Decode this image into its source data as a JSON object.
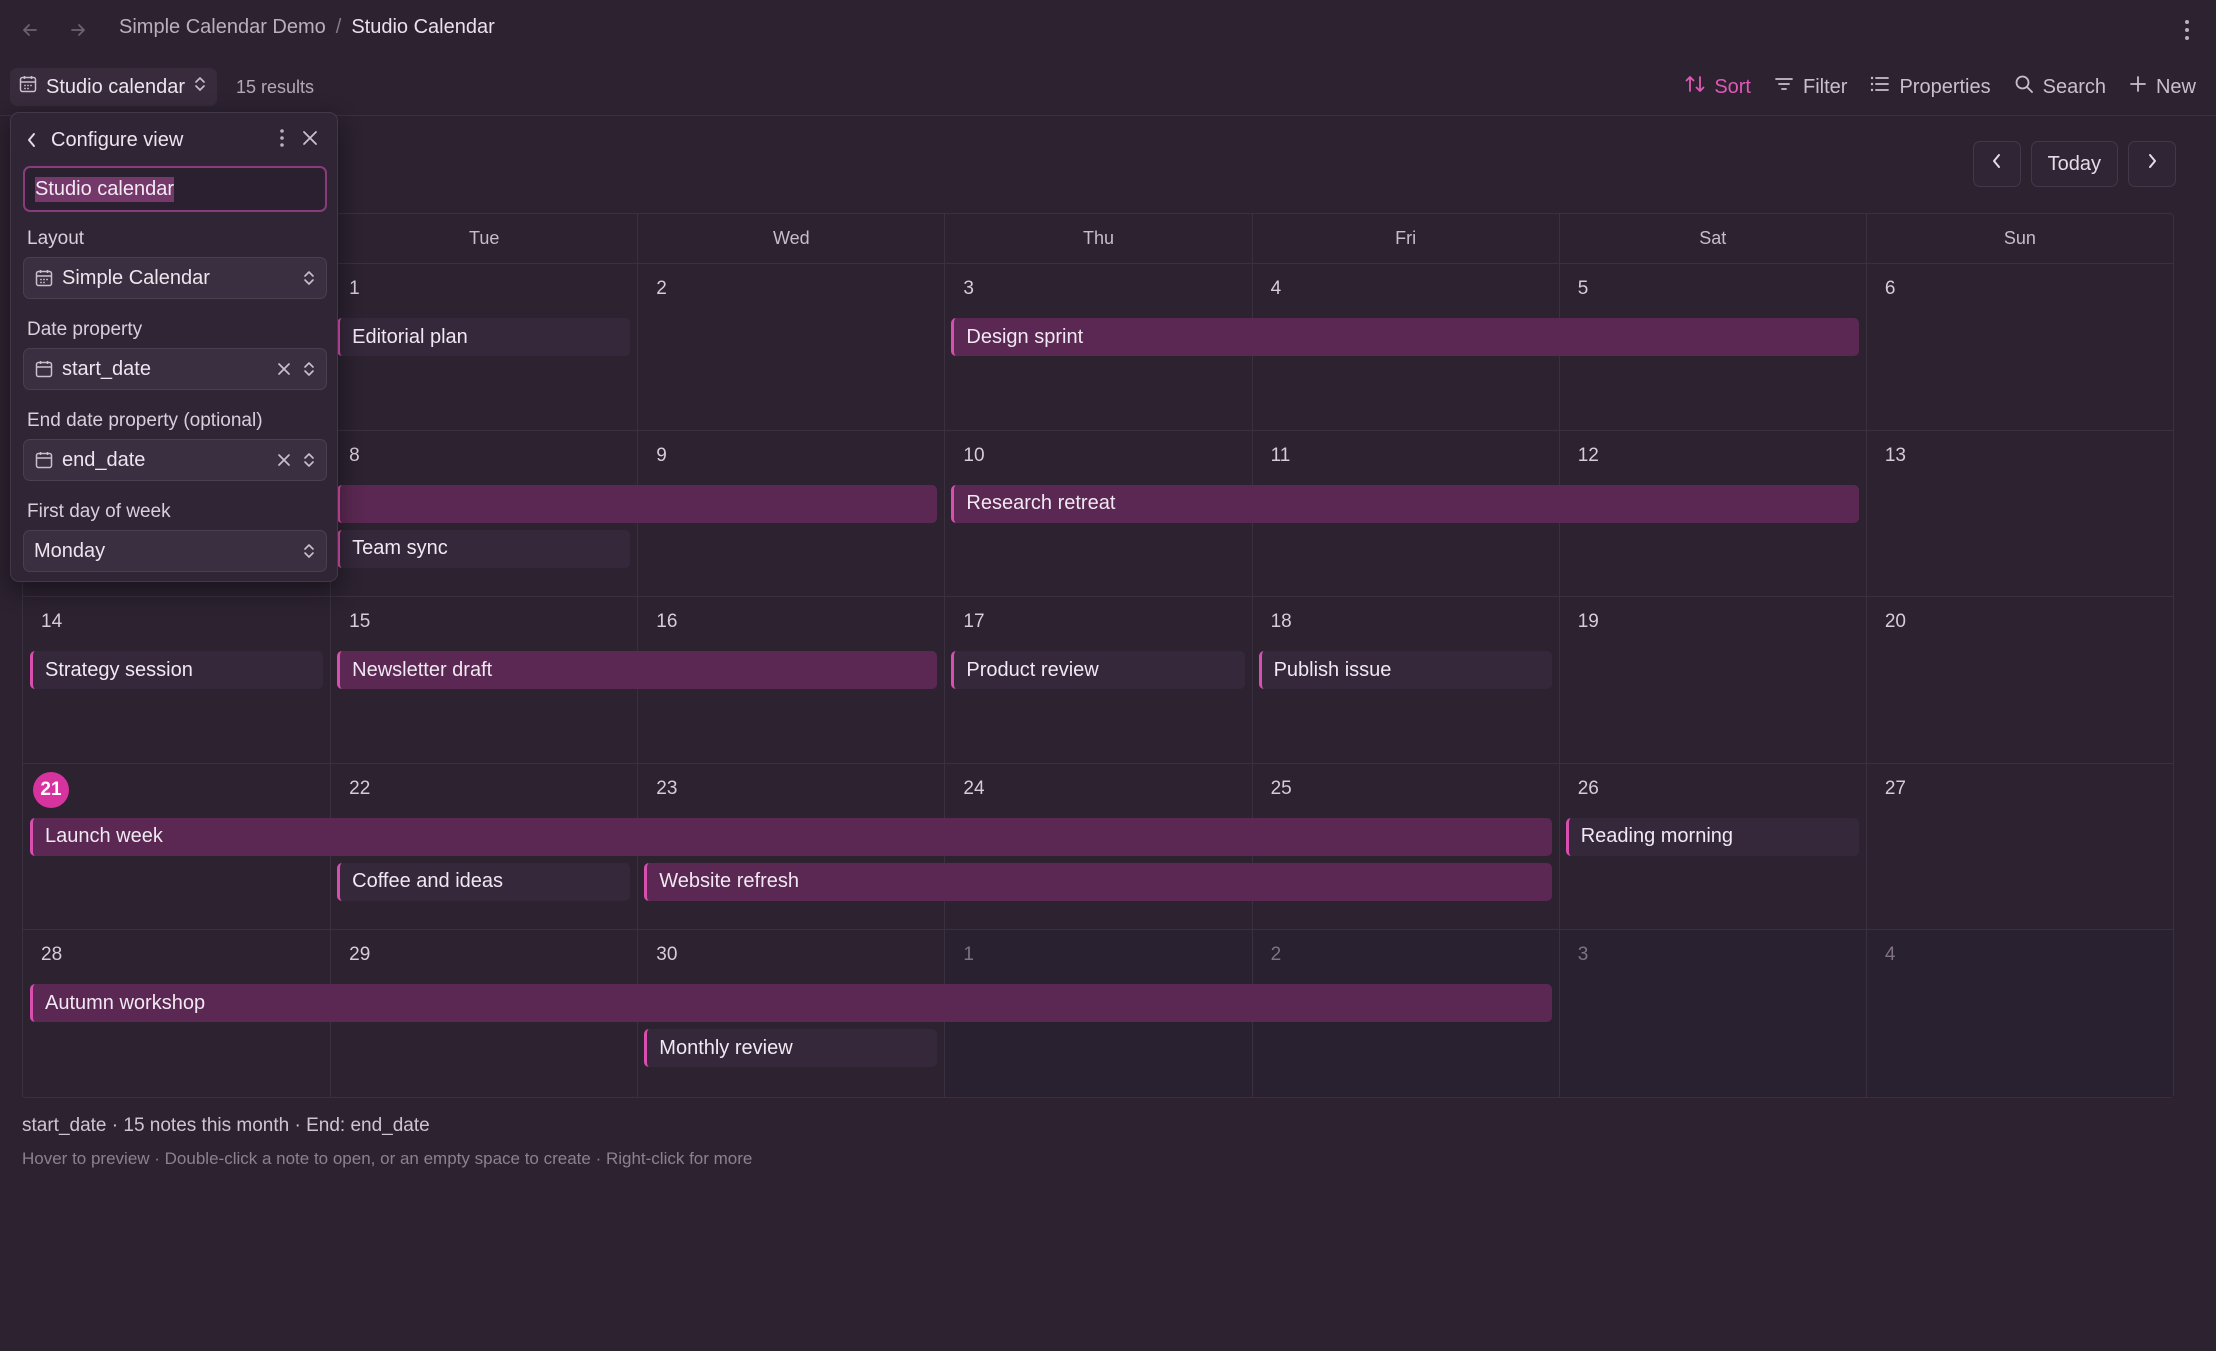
{
  "breadcrumb": {
    "parent": "Simple Calendar Demo",
    "separator": "/",
    "current": "Studio Calendar"
  },
  "view": {
    "name": "Studio calendar",
    "results": "15 results"
  },
  "actions": {
    "sort": "Sort",
    "filter": "Filter",
    "properties": "Properties",
    "search": "Search",
    "new": "New"
  },
  "nav": {
    "prev_icon": "chevron-left-icon",
    "today": "Today",
    "next_icon": "chevron-right-icon"
  },
  "weekdays": [
    "Mon",
    "Tue",
    "Wed",
    "Thu",
    "Fri",
    "Sat",
    "Sun"
  ],
  "weeks": [
    {
      "days": [
        {
          "label": "",
          "other": false
        },
        {
          "label": "1",
          "other": false
        },
        {
          "label": "2",
          "other": false
        },
        {
          "label": "3",
          "other": false
        },
        {
          "label": "4",
          "other": false
        },
        {
          "label": "5",
          "other": false
        },
        {
          "label": "6",
          "other": false
        }
      ]
    },
    {
      "days": [
        {
          "label": "",
          "other": false
        },
        {
          "label": "8",
          "other": false
        },
        {
          "label": "9",
          "other": false
        },
        {
          "label": "10",
          "other": false
        },
        {
          "label": "11",
          "other": false
        },
        {
          "label": "12",
          "other": false
        },
        {
          "label": "13",
          "other": false
        }
      ]
    },
    {
      "days": [
        {
          "label": "14",
          "other": false
        },
        {
          "label": "15",
          "other": false
        },
        {
          "label": "16",
          "other": false
        },
        {
          "label": "17",
          "other": false
        },
        {
          "label": "18",
          "other": false
        },
        {
          "label": "19",
          "other": false
        },
        {
          "label": "20",
          "other": false
        }
      ]
    },
    {
      "days": [
        {
          "label": "21",
          "other": false,
          "today": true
        },
        {
          "label": "22",
          "other": false
        },
        {
          "label": "23",
          "other": false
        },
        {
          "label": "24",
          "other": false
        },
        {
          "label": "25",
          "other": false
        },
        {
          "label": "26",
          "other": false
        },
        {
          "label": "27",
          "other": false
        }
      ]
    },
    {
      "days": [
        {
          "label": "28",
          "other": false
        },
        {
          "label": "29",
          "other": false
        },
        {
          "label": "30",
          "other": false
        },
        {
          "label": "1",
          "other": true
        },
        {
          "label": "2",
          "other": true
        },
        {
          "label": "3",
          "other": true
        },
        {
          "label": "4",
          "other": true
        }
      ]
    }
  ],
  "events": [
    {
      "title": "Editorial plan",
      "week": 0,
      "start": 1,
      "span": 1,
      "lane": 0,
      "multi": false
    },
    {
      "title": "Design sprint",
      "week": 0,
      "start": 3,
      "span": 3,
      "lane": 0,
      "multi": true
    },
    {
      "title": "",
      "week": 1,
      "start": 1,
      "span": 2,
      "lane": 0,
      "multi": true
    },
    {
      "title": "Research retreat",
      "week": 1,
      "start": 3,
      "span": 3,
      "lane": 0,
      "multi": true
    },
    {
      "title": "Team sync",
      "week": 1,
      "start": 1,
      "span": 1,
      "lane": 1,
      "multi": false
    },
    {
      "title": "Strategy session",
      "week": 2,
      "start": 0,
      "span": 1,
      "lane": 0,
      "multi": false
    },
    {
      "title": "Newsletter draft",
      "week": 2,
      "start": 1,
      "span": 2,
      "lane": 0,
      "multi": true
    },
    {
      "title": "Product review",
      "week": 2,
      "start": 3,
      "span": 1,
      "lane": 0,
      "multi": false
    },
    {
      "title": "Publish issue",
      "week": 2,
      "start": 4,
      "span": 1,
      "lane": 0,
      "multi": false
    },
    {
      "title": "Launch week",
      "week": 3,
      "start": 0,
      "span": 5,
      "lane": 0,
      "multi": true
    },
    {
      "title": "Reading morning",
      "week": 3,
      "start": 5,
      "span": 1,
      "lane": 0,
      "multi": false
    },
    {
      "title": "Coffee and ideas",
      "week": 3,
      "start": 1,
      "span": 1,
      "lane": 1,
      "multi": false
    },
    {
      "title": "Website refresh",
      "week": 3,
      "start": 2,
      "span": 3,
      "lane": 1,
      "multi": true
    },
    {
      "title": "Autumn workshop",
      "week": 4,
      "start": 0,
      "span": 5,
      "lane": 0,
      "multi": true
    },
    {
      "title": "Monthly review",
      "week": 4,
      "start": 2,
      "span": 1,
      "lane": 1,
      "multi": false
    }
  ],
  "footer": {
    "summary": "start_date · 15 notes this month · End: end_date",
    "hint": "Hover to preview · Double-click a note to open, or an empty space to create · Right-click for more"
  },
  "config": {
    "title": "Configure view",
    "name_value": "Studio calendar",
    "layout_label": "Layout",
    "layout_value": "Simple Calendar",
    "date_label": "Date property",
    "date_value": "start_date",
    "end_label": "End date property (optional)",
    "end_value": "end_date",
    "week_label": "First day of week",
    "week_value": "Monday"
  },
  "colors": {
    "accent": "#d94fb0",
    "today": "#d6339f",
    "event_bg": "#5a2852",
    "background": "#2c2230"
  }
}
